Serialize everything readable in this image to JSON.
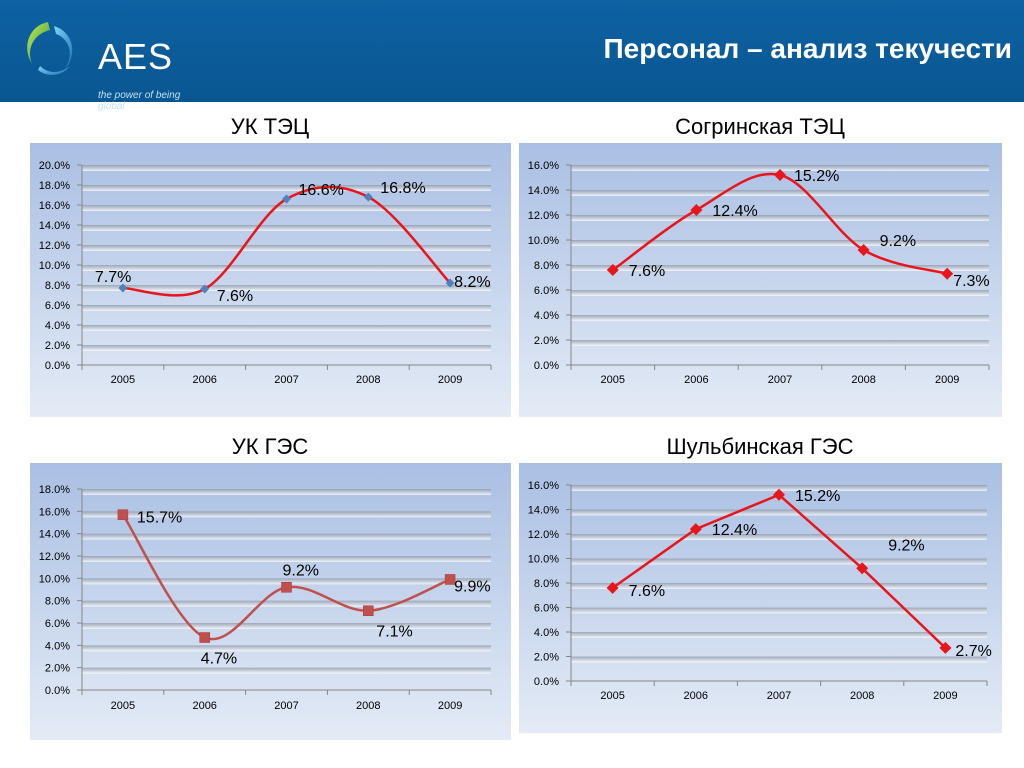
{
  "header": {
    "logo_text": "AES",
    "logo_tagline": "the power of being global",
    "page_title": "Персонал – анализ текучести"
  },
  "colors": {
    "header_blue": "#0d62a3",
    "series_red": "#e8161b",
    "series_dark_red": "#c0504d",
    "marker_blue": "#4f81bd"
  },
  "chart_data": [
    {
      "type": "line",
      "title": "УК ТЭЦ",
      "categories": [
        "2005",
        "2006",
        "2007",
        "2008",
        "2009"
      ],
      "values": [
        7.7,
        7.6,
        16.6,
        16.8,
        8.2
      ],
      "data_labels": [
        "7.7%",
        "7.6%",
        "16.6%",
        "16.8%",
        "8.2%"
      ],
      "yticks": [
        "0.0%",
        "2.0%",
        "4.0%",
        "6.0%",
        "8.0%",
        "10.0%",
        "12.0%",
        "14.0%",
        "16.0%",
        "18.0%",
        "20.0%"
      ],
      "ylim": [
        0,
        20
      ],
      "smooth": true,
      "line_color": "#e8161b",
      "marker": "diamond-small",
      "marker_color": "#4f81bd"
    },
    {
      "type": "line",
      "title": "Согринская ТЭЦ",
      "categories": [
        "2005",
        "2006",
        "2007",
        "2008",
        "2009"
      ],
      "values": [
        7.6,
        12.4,
        15.2,
        9.2,
        7.3
      ],
      "data_labels": [
        "7.6%",
        "12.4%",
        "15.2%",
        "9.2%",
        "7.3%"
      ],
      "yticks": [
        "0.0%",
        "2.0%",
        "4.0%",
        "6.0%",
        "8.0%",
        "10.0%",
        "12.0%",
        "14.0%",
        "16.0%"
      ],
      "ylim": [
        0,
        16
      ],
      "smooth": true,
      "line_color": "#e8161b",
      "marker": "diamond",
      "marker_color": "#e8161b"
    },
    {
      "type": "line",
      "title": "УК ГЭС",
      "categories": [
        "2005",
        "2006",
        "2007",
        "2008",
        "2009"
      ],
      "values": [
        15.7,
        4.7,
        9.2,
        7.1,
        9.9
      ],
      "data_labels": [
        "15.7%",
        "4.7%",
        "9.2%",
        "7.1%",
        "9.9%"
      ],
      "yticks": [
        "0.0%",
        "2.0%",
        "4.0%",
        "6.0%",
        "8.0%",
        "10.0%",
        "12.0%",
        "14.0%",
        "16.0%",
        "18.0%"
      ],
      "ylim": [
        0,
        18
      ],
      "smooth": true,
      "line_color": "#c0504d",
      "marker": "square",
      "marker_color": "#c0504d"
    },
    {
      "type": "line",
      "title": "Шульбинская ГЭС",
      "categories": [
        "2005",
        "2006",
        "2007",
        "2008",
        "2009"
      ],
      "values": [
        7.6,
        12.4,
        15.2,
        9.2,
        2.7
      ],
      "data_labels": [
        "7.6%",
        "12.4%",
        "15.2%",
        "9.2%",
        "2.7%"
      ],
      "yticks": [
        "0.0%",
        "2.0%",
        "4.0%",
        "6.0%",
        "8.0%",
        "10.0%",
        "12.0%",
        "14.0%",
        "16.0%"
      ],
      "ylim": [
        0,
        16
      ],
      "smooth": false,
      "line_color": "#e8161b",
      "marker": "diamond",
      "marker_color": "#e8161b"
    }
  ]
}
